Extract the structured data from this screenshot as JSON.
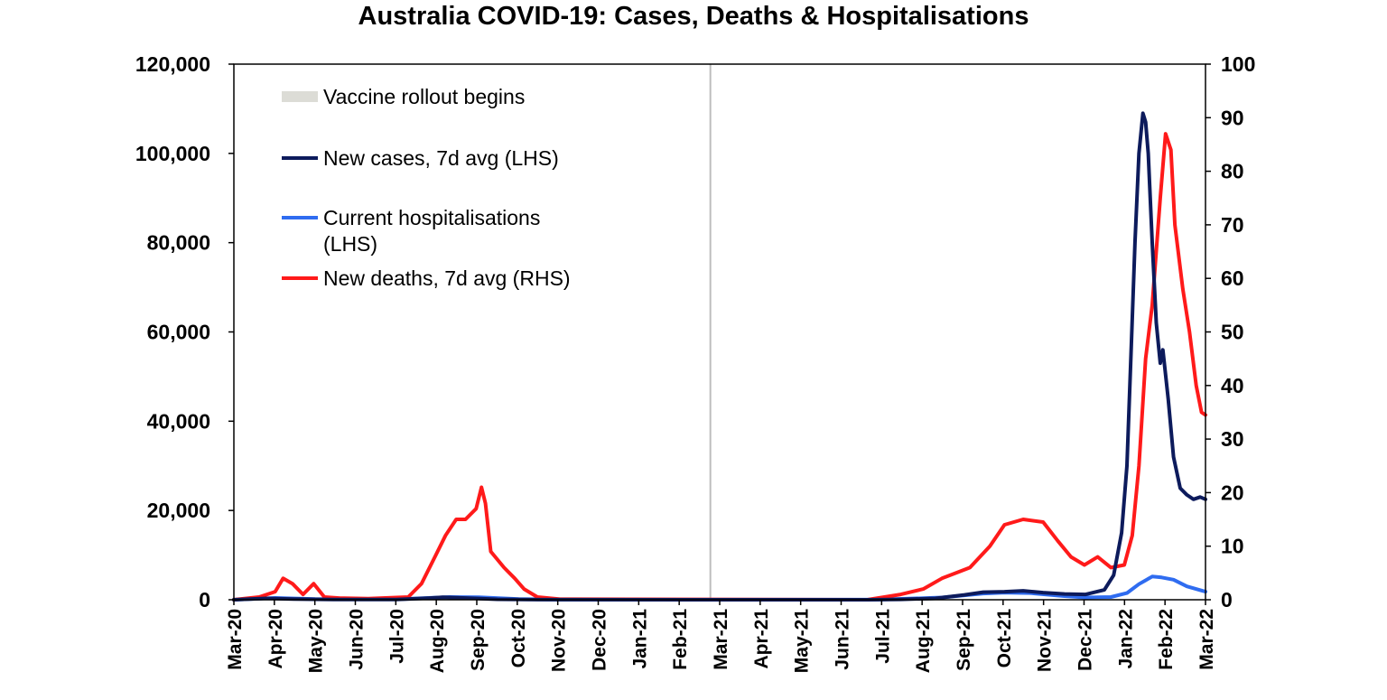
{
  "chart_data": {
    "type": "line",
    "title": "Australia COVID-19: Cases, Deaths & Hospitalisations",
    "x_axis": {
      "tick_labels": [
        "Mar-20",
        "Apr-20",
        "May-20",
        "Jun-20",
        "Jul-20",
        "Aug-20",
        "Sep-20",
        "Oct-20",
        "Nov-20",
        "Dec-20",
        "Jan-21",
        "Feb-21",
        "Mar-21",
        "Apr-21",
        "May-21",
        "Jun-21",
        "Jul-21",
        "Aug-21",
        "Sep-21",
        "Oct-21",
        "Nov-21",
        "Dec-21",
        "Jan-22",
        "Feb-22",
        "Mar-22"
      ],
      "range": [
        "2020-03-01",
        "2022-03-01"
      ]
    },
    "y_left": {
      "range": [
        0,
        120000
      ],
      "ticks": [
        0,
        20000,
        40000,
        60000,
        80000,
        100000,
        120000
      ],
      "tick_labels": [
        "0",
        "20,000",
        "40,000",
        "60,000",
        "80,000",
        "100,000",
        "120,000"
      ]
    },
    "y_right": {
      "range": [
        0,
        100
      ],
      "ticks": [
        0,
        10,
        20,
        30,
        40,
        50,
        60,
        70,
        80,
        90,
        100
      ],
      "tick_labels": [
        "0",
        "10",
        "20",
        "30",
        "40",
        "50",
        "60",
        "70",
        "80",
        "90",
        "100"
      ]
    },
    "vertical_marker": {
      "name": "Vaccine rollout begins",
      "date": "2021-02-22",
      "color": "#bdbdbd"
    },
    "series": [
      {
        "name": "New cases, 7d avg (LHS)",
        "axis": "left",
        "color": "#0d1b5c",
        "points": [
          [
            "2020-03-01",
            0
          ],
          [
            "2020-03-25",
            300
          ],
          [
            "2020-04-15",
            150
          ],
          [
            "2020-05-15",
            50
          ],
          [
            "2020-07-01",
            50
          ],
          [
            "2020-07-25",
            350
          ],
          [
            "2020-08-05",
            550
          ],
          [
            "2020-08-20",
            400
          ],
          [
            "2020-09-15",
            100
          ],
          [
            "2020-10-15",
            20
          ],
          [
            "2021-06-20",
            0
          ],
          [
            "2021-07-15",
            80
          ],
          [
            "2021-08-10",
            300
          ],
          [
            "2021-09-01",
            1100
          ],
          [
            "2021-09-15",
            1700
          ],
          [
            "2021-10-01",
            1800
          ],
          [
            "2021-10-15",
            2000
          ],
          [
            "2021-10-30",
            1600
          ],
          [
            "2021-11-15",
            1300
          ],
          [
            "2021-12-01",
            1200
          ],
          [
            "2021-12-15",
            2200
          ],
          [
            "2021-12-22",
            5500
          ],
          [
            "2021-12-28",
            15000
          ],
          [
            "2022-01-01",
            30000
          ],
          [
            "2022-01-04",
            55000
          ],
          [
            "2022-01-07",
            80000
          ],
          [
            "2022-01-10",
            100000
          ],
          [
            "2022-01-13",
            109000
          ],
          [
            "2022-01-15",
            107000
          ],
          [
            "2022-01-17",
            100000
          ],
          [
            "2022-01-20",
            80000
          ],
          [
            "2022-01-23",
            62000
          ],
          [
            "2022-01-26",
            53000
          ],
          [
            "2022-01-28",
            56000
          ],
          [
            "2022-02-01",
            45000
          ],
          [
            "2022-02-05",
            32000
          ],
          [
            "2022-02-10",
            25000
          ],
          [
            "2022-02-15",
            23500
          ],
          [
            "2022-02-20",
            22500
          ],
          [
            "2022-02-25",
            23000
          ],
          [
            "2022-03-01",
            22500
          ]
        ]
      },
      {
        "name": "Current hospitalisations (LHS)",
        "axis": "left",
        "color": "#2f6cf0",
        "points": [
          [
            "2020-03-01",
            0
          ],
          [
            "2020-04-01",
            400
          ],
          [
            "2020-05-01",
            150
          ],
          [
            "2020-07-01",
            100
          ],
          [
            "2020-08-10",
            600
          ],
          [
            "2020-09-01",
            550
          ],
          [
            "2020-10-01",
            150
          ],
          [
            "2020-11-01",
            20
          ],
          [
            "2021-07-01",
            50
          ],
          [
            "2021-08-15",
            500
          ],
          [
            "2021-09-15",
            1400
          ],
          [
            "2021-10-01",
            1600
          ],
          [
            "2021-10-20",
            1500
          ],
          [
            "2021-11-15",
            800
          ],
          [
            "2021-12-01",
            500
          ],
          [
            "2021-12-20",
            600
          ],
          [
            "2022-01-01",
            1500
          ],
          [
            "2022-01-10",
            3500
          ],
          [
            "2022-01-20",
            5200
          ],
          [
            "2022-01-27",
            5000
          ],
          [
            "2022-02-05",
            4500
          ],
          [
            "2022-02-15",
            3000
          ],
          [
            "2022-03-01",
            1800
          ]
        ]
      },
      {
        "name": "New deaths, 7d avg (RHS)",
        "axis": "right",
        "color": "#ff1a1a",
        "points": [
          [
            "2020-03-01",
            0
          ],
          [
            "2020-03-20",
            0.5
          ],
          [
            "2020-04-01",
            1.5
          ],
          [
            "2020-04-07",
            4
          ],
          [
            "2020-04-14",
            3
          ],
          [
            "2020-04-22",
            1
          ],
          [
            "2020-04-30",
            3
          ],
          [
            "2020-05-08",
            0.5
          ],
          [
            "2020-05-20",
            0.3
          ],
          [
            "2020-06-10",
            0.2
          ],
          [
            "2020-07-10",
            0.5
          ],
          [
            "2020-07-20",
            3
          ],
          [
            "2020-07-30",
            8
          ],
          [
            "2020-08-07",
            12
          ],
          [
            "2020-08-15",
            15
          ],
          [
            "2020-08-22",
            15
          ],
          [
            "2020-08-30",
            17
          ],
          [
            "2020-09-03",
            21
          ],
          [
            "2020-09-06",
            18
          ],
          [
            "2020-09-10",
            9
          ],
          [
            "2020-09-20",
            6
          ],
          [
            "2020-09-28",
            4
          ],
          [
            "2020-10-05",
            2
          ],
          [
            "2020-10-15",
            0.5
          ],
          [
            "2020-11-01",
            0.1
          ],
          [
            "2021-06-20",
            0
          ],
          [
            "2021-07-15",
            1
          ],
          [
            "2021-08-01",
            2
          ],
          [
            "2021-08-15",
            4
          ],
          [
            "2021-09-05",
            6
          ],
          [
            "2021-09-20",
            10
          ],
          [
            "2021-10-01",
            14
          ],
          [
            "2021-10-15",
            15
          ],
          [
            "2021-10-30",
            14.5
          ],
          [
            "2021-11-10",
            11
          ],
          [
            "2021-11-20",
            8
          ],
          [
            "2021-11-30",
            6.5
          ],
          [
            "2021-12-10",
            8
          ],
          [
            "2021-12-20",
            6
          ],
          [
            "2021-12-30",
            6.5
          ],
          [
            "2022-01-05",
            12
          ],
          [
            "2022-01-10",
            25
          ],
          [
            "2022-01-15",
            45
          ],
          [
            "2022-01-20",
            55
          ],
          [
            "2022-01-26",
            75
          ],
          [
            "2022-01-30",
            87
          ],
          [
            "2022-02-03",
            84
          ],
          [
            "2022-02-06",
            70
          ],
          [
            "2022-02-12",
            58
          ],
          [
            "2022-02-17",
            50
          ],
          [
            "2022-02-22",
            40
          ],
          [
            "2022-02-26",
            35
          ],
          [
            "2022-03-01",
            34.5
          ]
        ]
      }
    ],
    "legend": {
      "position": "top-left",
      "entries": [
        {
          "label": "Vaccine rollout begins",
          "color": "#dcdcd6",
          "style": "bar"
        },
        {
          "label": "New cases, 7d avg (LHS)",
          "color": "#0d1b5c",
          "style": "line"
        },
        {
          "label": "Current hospitalisations",
          "label_line2": "(LHS)",
          "color": "#2f6cf0",
          "style": "line"
        },
        {
          "label": "New deaths, 7d avg (RHS)",
          "color": "#ff1a1a",
          "style": "line"
        }
      ]
    },
    "grid": false
  }
}
